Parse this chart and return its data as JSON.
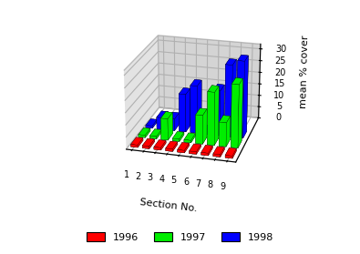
{
  "sections": [
    1,
    2,
    3,
    4,
    5,
    6,
    7,
    8,
    9
  ],
  "series": {
    "1996": [
      1,
      1,
      1,
      1,
      1,
      1,
      1,
      1,
      1
    ],
    "1997": [
      1,
      1,
      9,
      1,
      1,
      12,
      22,
      10,
      26
    ],
    "1998": [
      1,
      5,
      5,
      16,
      20,
      1,
      19,
      30,
      32
    ]
  },
  "colors": {
    "1996": "#ff0000",
    "1997": "#00ee00",
    "1998": "#0000ff"
  },
  "ylabel": "mean % cover",
  "xlabel": "Section No.",
  "zlim": [
    0,
    32
  ],
  "zticks": [
    0,
    5,
    10,
    15,
    20,
    25,
    30
  ],
  "background_color": "#ffffff",
  "bar_width": 0.6,
  "bar_depth": 0.25,
  "elev": 22,
  "azim": -75
}
